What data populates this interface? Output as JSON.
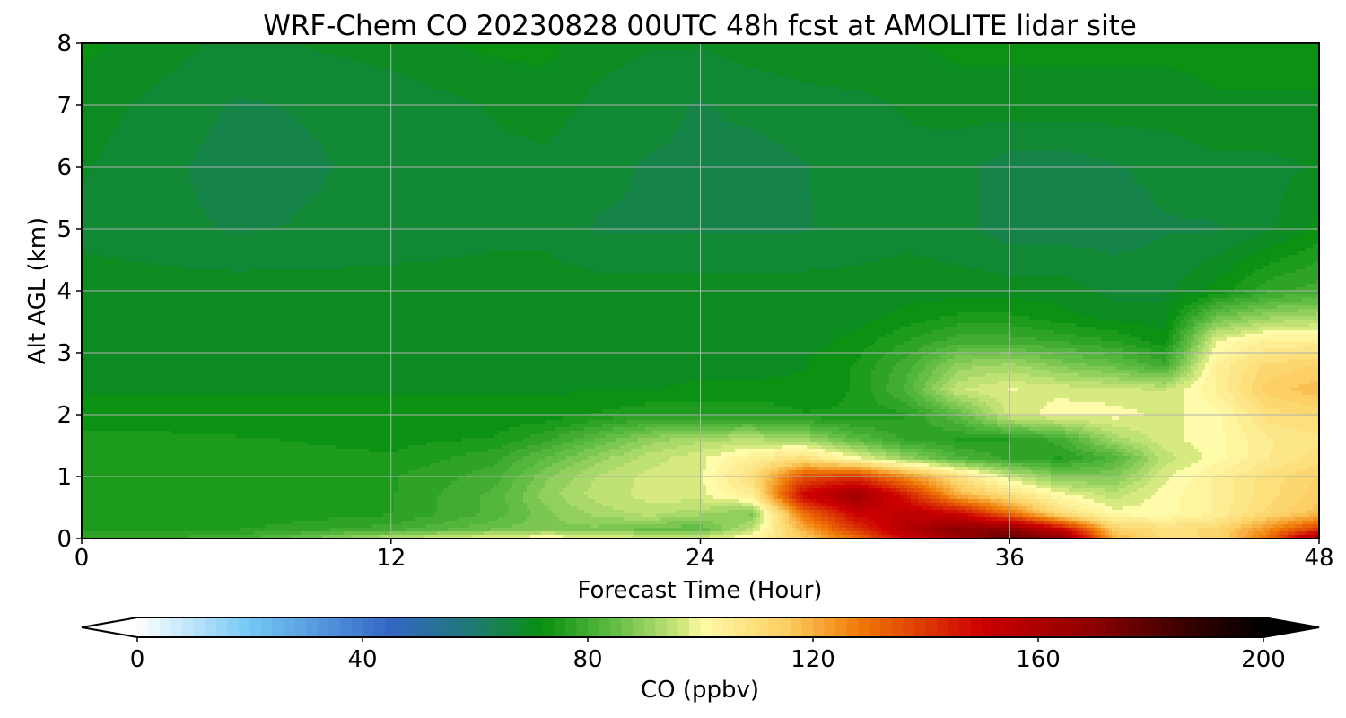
{
  "chart_data": {
    "type": "heatmap",
    "title": "WRF-Chem CO  20230828 00UTC 48h fcst at AMOLITE lidar site",
    "xlabel": "Forecast Time (Hour)",
    "ylabel": "Alt AGL (km)",
    "xlim": [
      0,
      48
    ],
    "ylim": [
      0,
      8
    ],
    "x_ticks": [
      0,
      12,
      24,
      36,
      48
    ],
    "y_ticks": [
      0,
      1,
      2,
      3,
      4,
      5,
      6,
      7,
      8
    ],
    "grid": true,
    "colorbar": {
      "label": "CO  (ppbv)",
      "range": [
        0,
        200
      ],
      "ticks": [
        0,
        40,
        80,
        120,
        160,
        200
      ],
      "extend": "both",
      "stops": [
        {
          "v": 0,
          "c": "#ffffff"
        },
        {
          "v": 20,
          "c": "#74c8f4"
        },
        {
          "v": 45,
          "c": "#3466c6"
        },
        {
          "v": 60,
          "c": "#1e7a70"
        },
        {
          "v": 72,
          "c": "#089010"
        },
        {
          "v": 85,
          "c": "#64be46"
        },
        {
          "v": 98,
          "c": "#dcec82"
        },
        {
          "v": 100,
          "c": "#fefcaa"
        },
        {
          "v": 115,
          "c": "#fcd064"
        },
        {
          "v": 128,
          "c": "#f07c08"
        },
        {
          "v": 150,
          "c": "#cc0000"
        },
        {
          "v": 170,
          "c": "#8c0000"
        },
        {
          "v": 190,
          "c": "#280000"
        },
        {
          "v": 200,
          "c": "#000000"
        }
      ]
    },
    "x": [
      0,
      6,
      12,
      16,
      18,
      20,
      22,
      24,
      26,
      28,
      30,
      32,
      34,
      36,
      38,
      40,
      42,
      44,
      46,
      48
    ],
    "y": [
      0,
      0.15,
      0.4,
      0.7,
      1.0,
      1.3,
      1.6,
      2.0,
      2.4,
      2.8,
      3.2,
      3.6,
      4.0,
      5.0,
      6.0,
      7.0,
      8.0
    ],
    "z": [
      [
        78,
        80,
        95,
        100,
        102,
        100,
        98,
        98,
        102,
        115,
        130,
        150,
        165,
        180,
        170,
        120,
        110,
        112,
        130,
        165
      ],
      [
        76,
        76,
        80,
        86,
        88,
        88,
        85,
        84,
        95,
        120,
        140,
        158,
        170,
        170,
        150,
        115,
        110,
        112,
        125,
        140
      ],
      [
        74,
        74,
        76,
        82,
        88,
        92,
        95,
        92,
        88,
        130,
        150,
        155,
        150,
        130,
        110,
        100,
        100,
        104,
        112,
        118
      ],
      [
        74,
        74,
        76,
        82,
        90,
        95,
        97,
        98,
        105,
        150,
        165,
        145,
        120,
        110,
        100,
        95,
        100,
        104,
        110,
        115
      ],
      [
        76,
        75,
        76,
        80,
        88,
        94,
        97,
        98,
        110,
        135,
        140,
        125,
        110,
        96,
        88,
        88,
        98,
        104,
        110,
        114
      ],
      [
        76,
        75,
        74,
        78,
        84,
        90,
        95,
        98,
        104,
        110,
        100,
        90,
        82,
        78,
        76,
        82,
        95,
        100,
        106,
        110
      ],
      [
        75,
        74,
        73,
        74,
        78,
        84,
        90,
        93,
        94,
        92,
        84,
        78,
        76,
        76,
        80,
        92,
        98,
        100,
        106,
        108
      ],
      [
        72,
        72,
        72,
        72,
        72,
        74,
        76,
        76,
        76,
        74,
        74,
        76,
        84,
        97,
        100,
        100,
        98,
        100,
        110,
        112
      ],
      [
        71,
        71,
        71,
        71,
        71,
        71,
        71,
        72,
        72,
        72,
        74,
        82,
        96,
        99,
        98,
        97,
        96,
        104,
        115,
        118
      ],
      [
        70,
        70,
        70,
        70,
        70,
        70,
        70,
        70,
        70,
        71,
        74,
        80,
        90,
        92,
        88,
        85,
        80,
        104,
        112,
        114
      ],
      [
        70,
        70,
        70,
        70,
        70,
        70,
        70,
        70,
        70,
        70,
        72,
        76,
        80,
        80,
        78,
        76,
        72,
        98,
        104,
        104
      ],
      [
        70,
        70,
        70,
        70,
        70,
        70,
        70,
        70,
        70,
        70,
        70,
        72,
        74,
        74,
        72,
        70,
        70,
        85,
        90,
        92
      ],
      [
        70,
        70,
        70,
        70,
        70,
        70,
        70,
        70,
        70,
        70,
        70,
        70,
        70,
        70,
        70,
        68,
        68,
        72,
        78,
        80
      ],
      [
        68,
        66,
        67,
        68,
        68,
        66,
        66,
        66,
        66,
        66,
        67,
        68,
        67,
        65,
        65,
        65,
        66,
        66,
        68,
        72
      ],
      [
        69,
        65,
        67,
        68,
        68,
        67,
        66,
        66,
        65,
        66,
        68,
        68,
        67,
        65,
        65,
        66,
        67,
        68,
        68,
        69
      ],
      [
        70,
        66,
        67,
        69,
        70,
        68,
        67,
        66,
        67,
        68,
        68,
        69,
        70,
        70,
        70,
        70,
        70,
        71,
        71,
        71
      ],
      [
        72,
        68,
        70,
        72,
        72,
        70,
        69,
        69,
        70,
        70,
        71,
        71,
        72,
        72,
        72,
        72,
        72,
        72,
        72,
        72
      ]
    ]
  }
}
